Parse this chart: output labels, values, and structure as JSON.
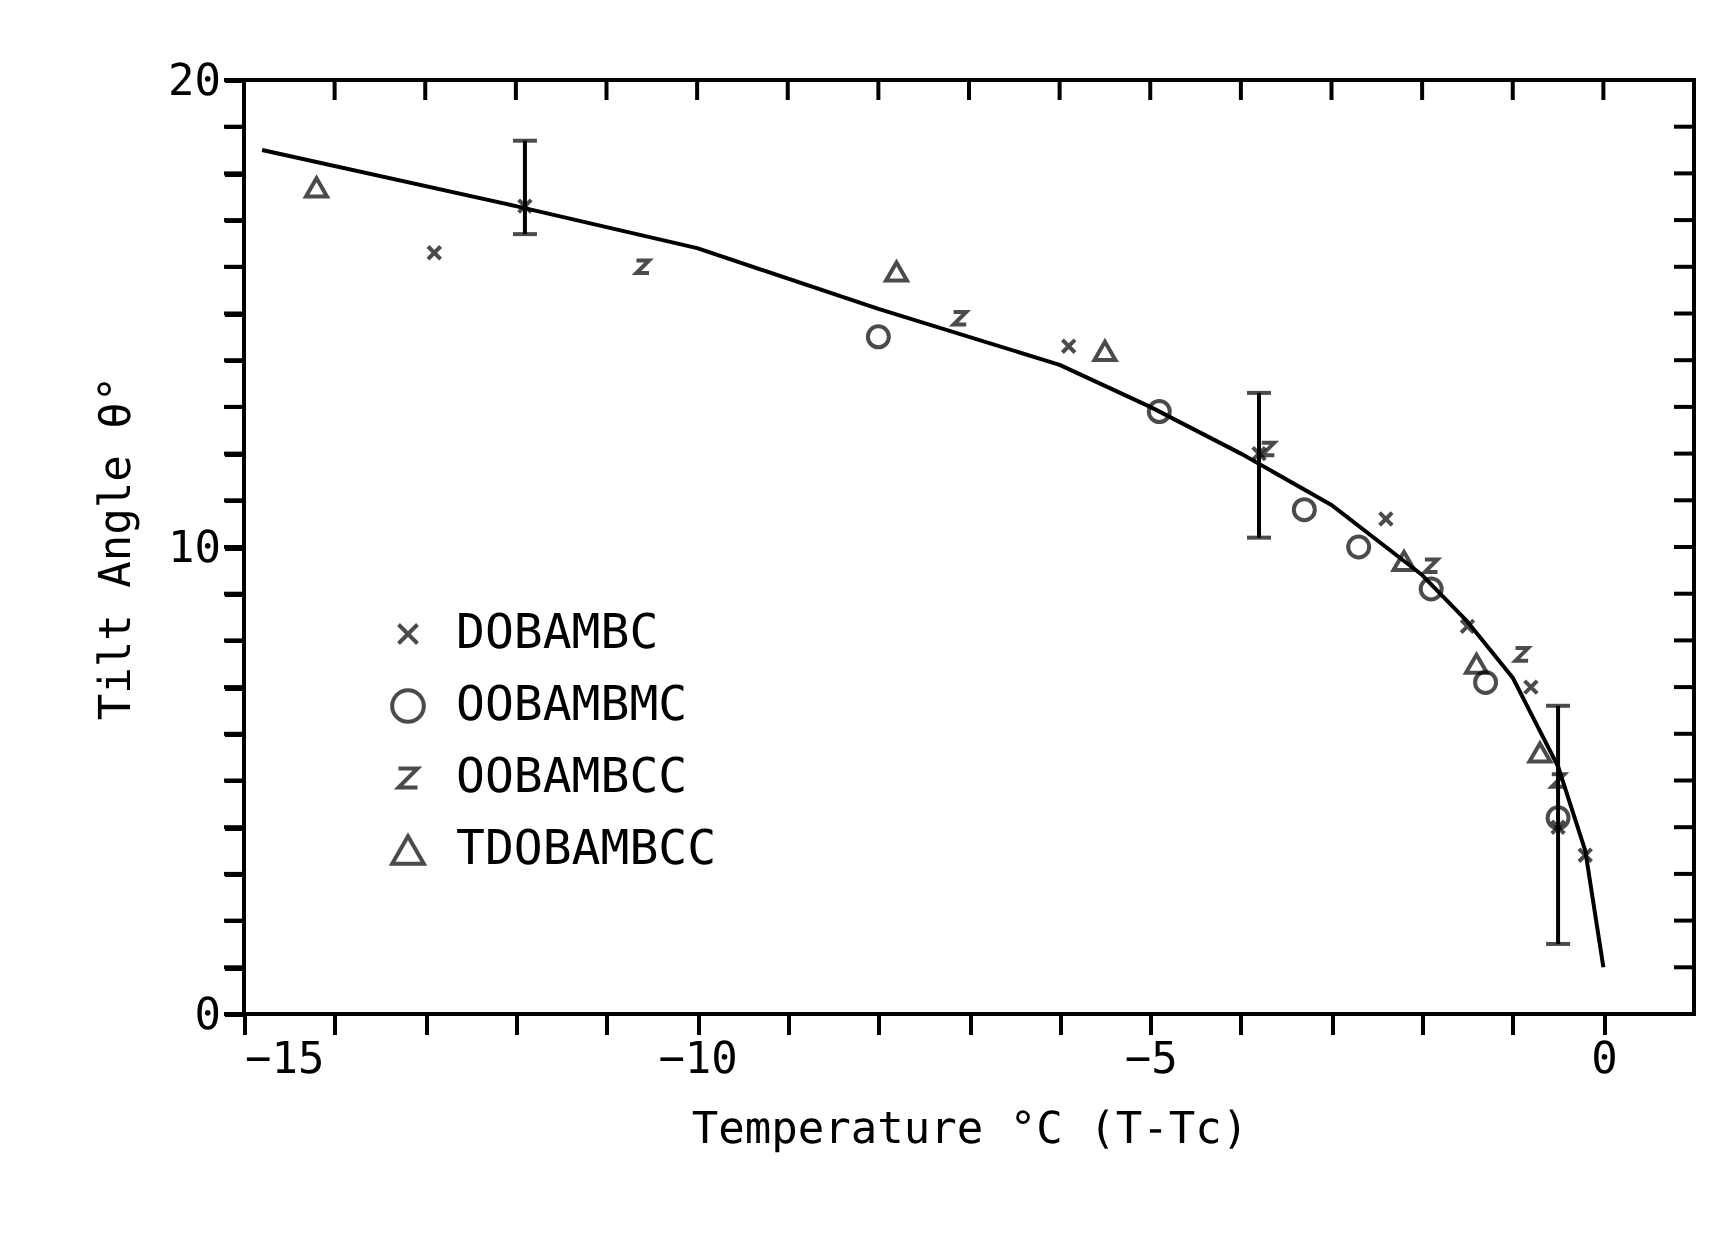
{
  "chart_data": {
    "type": "scatter",
    "xlabel": "Temperature °C (T-Tc)",
    "ylabel": "Tilt Angle θ°",
    "xlim": [
      -15,
      1
    ],
    "ylim": [
      0,
      20
    ],
    "xticks": [
      -15,
      {
        "value": -14,
        "label": null
      },
      {
        "value": -13,
        "label": null
      },
      {
        "value": -12,
        "label": null
      },
      {
        "value": -11,
        "label": null
      },
      -10,
      {
        "value": -9,
        "label": null
      },
      {
        "value": -8,
        "label": null
      },
      {
        "value": -7,
        "label": null
      },
      {
        "value": -6,
        "label": null
      },
      -5,
      {
        "value": -4,
        "label": null
      },
      {
        "value": -3,
        "label": null
      },
      {
        "value": -2,
        "label": null
      },
      {
        "value": -1,
        "label": null
      },
      0
    ],
    "yticks": [
      0,
      {
        "value": 1,
        "label": null
      },
      {
        "value": 2,
        "label": null
      },
      {
        "value": 3,
        "label": null
      },
      {
        "value": 4,
        "label": null
      },
      {
        "value": 5,
        "label": null
      },
      {
        "value": 6,
        "label": null
      },
      {
        "value": 7,
        "label": null
      },
      {
        "value": 8,
        "label": null
      },
      {
        "value": 9,
        "label": null
      },
      10,
      {
        "value": 11,
        "label": null
      },
      {
        "value": 12,
        "label": null
      },
      {
        "value": 13,
        "label": null
      },
      {
        "value": 14,
        "label": null
      },
      {
        "value": 15,
        "label": null
      },
      {
        "value": 16,
        "label": null
      },
      {
        "value": 17,
        "label": null
      },
      {
        "value": 18,
        "label": null
      },
      {
        "value": 19,
        "label": null
      },
      20
    ],
    "legend": "bottom left",
    "series": [
      {
        "name": "DOBAMBC",
        "color": "#000000",
        "marker": "cross",
        "x": [
          -12.9,
          -11.9,
          -5.9,
          -3.8,
          -2.4,
          -1.5,
          -0.8,
          -0.5,
          -0.2
        ],
        "values": [
          16.3,
          17.3,
          14.3,
          12.0,
          10.6,
          8.3,
          7.0,
          4.0,
          3.4
        ],
        "errors": [
          null,
          [
            16.7,
            18.7
          ],
          null,
          [
            10.2,
            13.3
          ],
          null,
          null,
          null,
          null,
          null
        ]
      },
      {
        "name": "OOBAMBMC",
        "color": "#000000",
        "marker": "circle",
        "x": [
          -8.0,
          -4.9,
          -3.3,
          -2.7,
          -1.9,
          -1.3,
          -0.5
        ],
        "values": [
          14.5,
          12.9,
          10.8,
          10.0,
          9.1,
          7.1,
          4.2
        ],
        "errors": [
          null,
          null,
          null,
          null,
          null,
          null,
          [
            1.5,
            6.6
          ]
        ]
      },
      {
        "name": "OOBAMBCC",
        "color": "#000000",
        "x": [
          -10.6,
          -7.1,
          -3.7,
          -1.9,
          -0.9,
          -0.5
        ],
        "values": [
          16.0,
          14.9,
          12.1,
          9.6,
          7.7,
          5.0
        ]
      },
      {
        "name": "TDOBAMBCC",
        "color": "#000000",
        "marker": "triangle",
        "x": [
          -14.2,
          -7.8,
          -5.5,
          -2.2,
          -1.4,
          -0.7
        ],
        "values": [
          17.7,
          15.9,
          14.2,
          9.7,
          7.5,
          5.6
        ]
      },
      {
        "type": "line",
        "color": "#000000",
        "x": [
          -14.8,
          -12,
          -10,
          -8,
          -6,
          -5,
          -4,
          -3,
          -2,
          -1.5,
          -1,
          -0.5,
          -0.2,
          0
        ],
        "values": [
          18.5,
          17.3,
          16.4,
          15.1,
          13.9,
          13.0,
          12.0,
          10.9,
          9.4,
          8.4,
          7.2,
          5.3,
          3.5,
          1.0
        ]
      }
    ]
  }
}
